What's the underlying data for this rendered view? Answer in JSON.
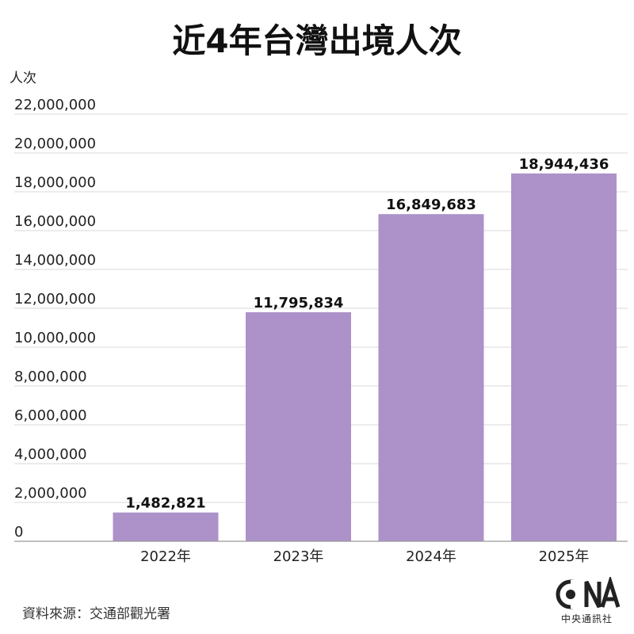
{
  "title": "近4年台灣出境人次",
  "y_unit": "人次",
  "source": "資料來源：交通部觀光署",
  "logo_text": "中央通訊社",
  "colors": {
    "bar": "#AC92C9",
    "grid": "#D9D9D9",
    "text": "#222222"
  },
  "chart_data": {
    "type": "bar",
    "title": "近4年台灣出境人次",
    "ylabel": "人次",
    "xlabel": "",
    "categories": [
      "2022年",
      "2023年",
      "2024年",
      "2025年"
    ],
    "values": [
      1482821,
      11795834,
      16849683,
      18944436
    ],
    "value_labels": [
      "1,482,821",
      "11,795,834",
      "16,849,683",
      "18,944,436"
    ],
    "ylim": [
      0,
      22000000
    ],
    "yticks": [
      0,
      2000000,
      4000000,
      6000000,
      8000000,
      10000000,
      12000000,
      14000000,
      16000000,
      18000000,
      20000000,
      22000000
    ],
    "ytick_labels": [
      "0",
      "2,000,000",
      "4,000,000",
      "6,000,000",
      "8,000,000",
      "10,000,000",
      "12,000,000",
      "14,000,000",
      "16,000,000",
      "18,000,000",
      "20,000,000",
      "22,000,000"
    ],
    "grid": true,
    "legend": "none"
  }
}
